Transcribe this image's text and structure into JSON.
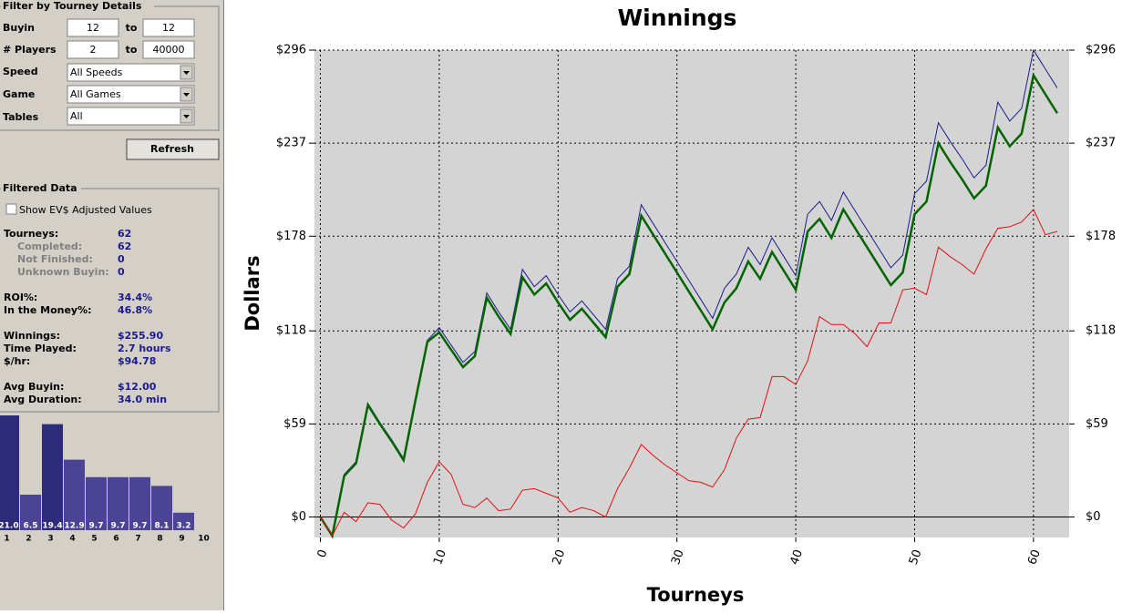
{
  "filter": {
    "title": "Filter by Tourney Details",
    "buyin": {
      "label": "Buyin",
      "from": "12",
      "to_label": "to",
      "to": "12"
    },
    "players": {
      "label": "# Players",
      "from": "2",
      "to_label": "to",
      "to": "40000"
    },
    "speed": {
      "label": "Speed",
      "value": "All Speeds"
    },
    "game": {
      "label": "Game",
      "value": "All Games"
    },
    "tables": {
      "label": "Tables",
      "value": "All"
    },
    "refresh": "Refresh"
  },
  "filtered_data": {
    "title": "Filtered Data",
    "checkbox": "Show EV$ Adjusted Values",
    "groups": [
      [
        {
          "label": "Tourneys:",
          "value": "62",
          "sub": false
        },
        {
          "label": "Completed:",
          "value": "62",
          "sub": true
        },
        {
          "label": "Not Finished:",
          "value": "0",
          "sub": true
        },
        {
          "label": "Unknown Buyin:",
          "value": "0",
          "sub": true
        }
      ],
      [
        {
          "label": "ROI%:",
          "value": "34.4%",
          "sub": false
        },
        {
          "label": "In the Money%:",
          "value": "46.8%",
          "sub": false
        }
      ],
      [
        {
          "label": "Winnings:",
          "value": "$255.90",
          "sub": false
        },
        {
          "label": "Time Played:",
          "value": "2.7 hours",
          "sub": false
        },
        {
          "label": "$/hr:",
          "value": "$94.78",
          "sub": false
        }
      ],
      [
        {
          "label": "Avg Buyin:",
          "value": "$12.00",
          "sub": false
        },
        {
          "label": "Avg Duration:",
          "value": "34.0 min",
          "sub": false
        }
      ]
    ]
  },
  "chart_data": [
    {
      "type": "line",
      "title": "Winnings",
      "x_label": "Tourneys",
      "y_label": "Dollars",
      "x": [
        0,
        1,
        2,
        3,
        4,
        5,
        6,
        7,
        8,
        9,
        10,
        11,
        12,
        13,
        14,
        15,
        16,
        17,
        18,
        19,
        20,
        21,
        22,
        23,
        24,
        25,
        26,
        27,
        28,
        29,
        30,
        31,
        32,
        33,
        34,
        35,
        36,
        37,
        38,
        39,
        40,
        41,
        42,
        43,
        44,
        45,
        46,
        47,
        48,
        49,
        50,
        51,
        52,
        53,
        54,
        55,
        56,
        57,
        58,
        59,
        60,
        61,
        62
      ],
      "series": [
        {
          "color": "#1c1c8c",
          "width": 1,
          "values": [
            0,
            -12,
            27,
            35,
            72,
            60,
            49,
            37,
            75,
            112,
            120,
            109,
            98,
            105,
            142,
            130,
            119,
            157,
            146,
            153,
            141,
            130,
            137,
            128,
            119,
            151,
            159,
            198,
            186,
            174,
            162,
            150,
            138,
            126,
            145,
            154,
            171,
            160,
            177,
            165,
            153,
            192,
            200,
            188,
            206,
            194,
            182,
            170,
            158,
            166,
            205,
            213,
            250,
            238,
            227,
            215,
            223,
            263,
            251,
            259,
            296,
            284,
            272
          ]
        },
        {
          "color": "#006400",
          "width": 2.5,
          "values": [
            0,
            -12,
            26,
            34,
            71,
            59,
            48,
            36,
            74,
            111,
            117,
            106,
            95,
            102,
            139,
            127,
            116,
            152,
            141,
            148,
            136,
            125,
            132,
            123,
            114,
            146,
            154,
            191,
            179,
            167,
            155,
            143,
            131,
            119,
            136,
            145,
            162,
            151,
            168,
            156,
            144,
            181,
            189,
            177,
            195,
            183,
            171,
            159,
            147,
            155,
            192,
            200,
            237,
            225,
            214,
            202,
            210,
            247,
            235,
            243,
            280,
            268,
            256
          ]
        },
        {
          "color": "#e01010",
          "width": 1,
          "values": [
            0,
            -12,
            3,
            -3,
            9,
            8,
            -2,
            -7,
            2,
            22,
            35,
            27,
            8,
            6,
            12,
            4,
            5,
            17,
            18,
            15,
            12,
            3,
            6,
            4,
            0,
            18,
            31,
            46,
            39,
            33,
            28,
            23,
            22,
            19,
            30,
            50,
            62,
            63,
            89,
            89,
            84,
            99,
            127,
            122,
            122,
            116,
            108,
            123,
            123,
            144,
            145,
            141,
            171,
            165,
            160,
            154,
            170,
            183,
            184,
            187,
            195,
            179,
            181
          ]
        }
      ],
      "xlim": [
        -0.5,
        63
      ],
      "xticks": [
        0,
        10,
        20,
        30,
        40,
        50,
        60
      ],
      "ylim": [
        -13,
        296
      ],
      "yticks": [
        {
          "value": 0,
          "label": "$0"
        },
        {
          "value": 59,
          "label": "$59"
        },
        {
          "value": 118,
          "label": "$118"
        },
        {
          "value": 178,
          "label": "$178"
        },
        {
          "value": 237,
          "label": "$237"
        },
        {
          "value": 296,
          "label": "$296"
        }
      ],
      "grid": true,
      "background": "#d4d4d4"
    },
    {
      "type": "bar",
      "categories": [
        "1",
        "2",
        "3",
        "4",
        "5",
        "6",
        "7",
        "8",
        "9",
        "10"
      ],
      "values": [
        21.0,
        6.5,
        19.4,
        12.9,
        9.7,
        9.7,
        9.7,
        8.1,
        3.2,
        null
      ],
      "value_labels": [
        "21.0",
        "6.5",
        "19.4",
        "12.9",
        "9.7",
        "9.7",
        "9.7",
        "8.1",
        "3.2",
        null
      ],
      "colors": [
        "#2e2a7c",
        "#4b4394",
        "#2e2a7c",
        "#4b4394",
        "#4b4394",
        "#4b4394",
        "#4b4394",
        "#4b4394",
        "#4b4394",
        "#4b4394"
      ],
      "ylim": [
        0,
        21
      ]
    }
  ]
}
